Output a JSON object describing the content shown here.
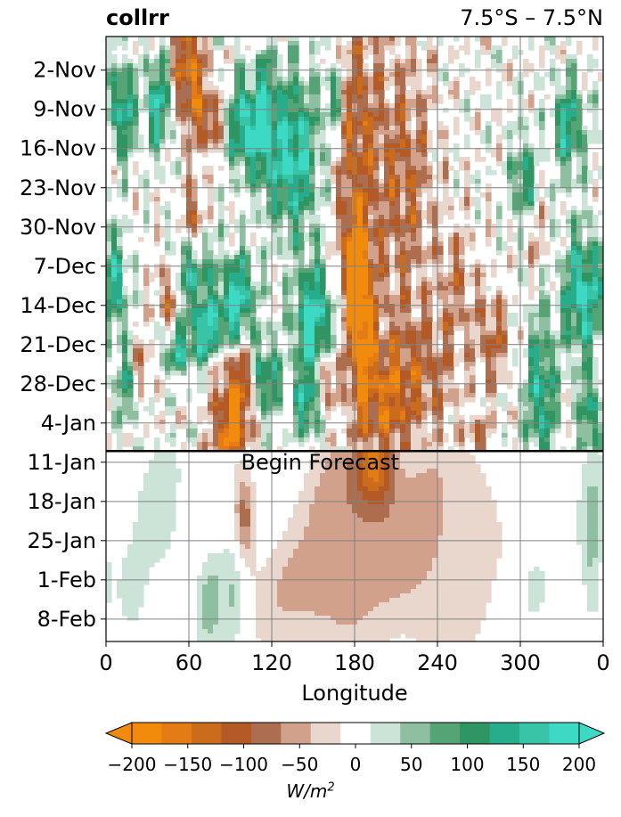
{
  "chart_data": {
    "type": "heatmap",
    "title_left": "collrr",
    "title_right": "7.5°S – 7.5°N",
    "xlabel": "Longitude",
    "x_ticks": [
      "0",
      "60",
      "120",
      "180",
      "240",
      "300",
      "0"
    ],
    "x_tick_values": [
      0,
      60,
      120,
      180,
      240,
      300,
      360
    ],
    "xlim": [
      0,
      360
    ],
    "y_ticks": [
      "2-Nov",
      "9-Nov",
      "16-Nov",
      "23-Nov",
      "30-Nov",
      "7-Dec",
      "14-Dec",
      "21-Dec",
      "28-Dec",
      "4-Jan",
      "11-Jan",
      "18-Jan",
      "25-Jan",
      "1-Feb",
      "8-Feb"
    ],
    "y_tick_days": [
      0,
      7,
      14,
      21,
      28,
      35,
      42,
      49,
      56,
      63,
      70,
      77,
      84,
      91,
      98
    ],
    "ylim_days": [
      -6,
      102
    ],
    "y_inverted": true,
    "grid": true,
    "forecast_start_day": 68,
    "annotation": "Begin Forecast",
    "colorbar": {
      "orientation": "horizontal",
      "extend": "both",
      "levels": [
        -200,
        -175,
        -150,
        -125,
        -100,
        -75,
        -50,
        -25,
        25,
        50,
        75,
        100,
        125,
        150,
        175,
        200
      ],
      "colors": [
        "#f28a0c",
        "#e37c14",
        "#cb6b1c",
        "#b35a26",
        "#ac6e4e",
        "#d2a18c",
        "#e9d6cc",
        "#ffffff",
        "#cce4d8",
        "#8dbfa0",
        "#55a476",
        "#2e9563",
        "#27ad8c",
        "#39c4a8",
        "#3cd9c4"
      ],
      "under_color": "#f28a0c",
      "over_color": "#3cd9c4",
      "ticks": [
        "−200",
        "−150",
        "−100",
        "−50",
        "0",
        "50",
        "100",
        "150",
        "200"
      ],
      "tick_values": [
        -200,
        -150,
        -100,
        -50,
        0,
        50,
        100,
        150,
        200
      ],
      "units": "W/m",
      "units_power": "2"
    }
  }
}
